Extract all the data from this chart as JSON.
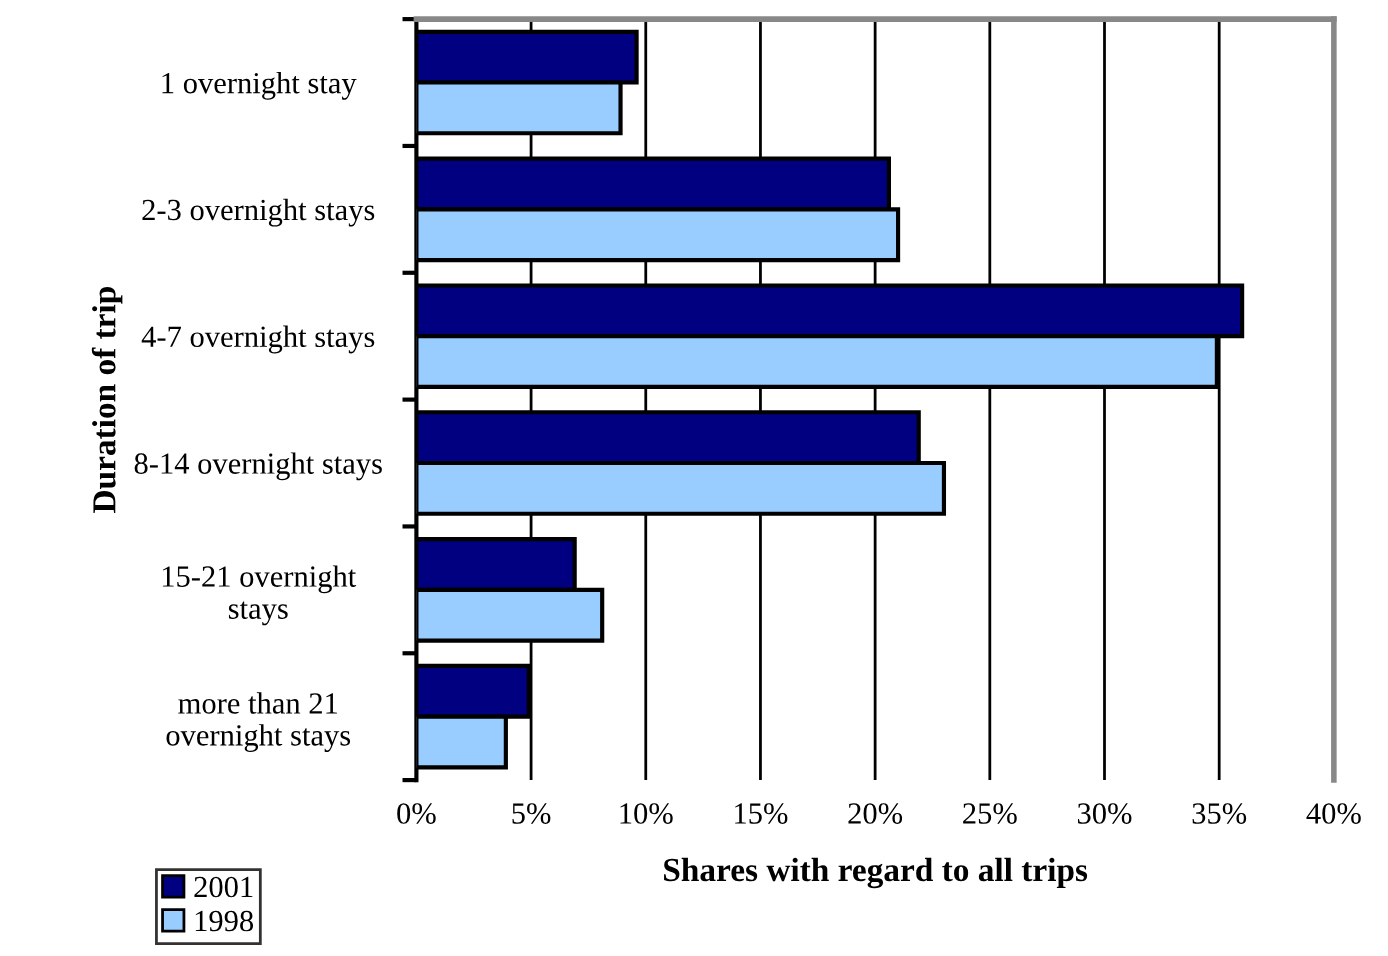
{
  "chart_data": {
    "type": "bar",
    "orientation": "horizontal",
    "xlabel": "Shares with regard to all trips",
    "ylabel": "Duration of trip",
    "categories": [
      "1 overnight stay",
      "2-3 overnight stays",
      "4-7 overnight stays",
      "8-14 overnight stays",
      "15-21 overnight\nstays",
      "more than 21\novernight stays"
    ],
    "series": [
      {
        "name": "2001",
        "color": "#000080",
        "values": [
          9.6,
          20.6,
          36.0,
          21.9,
          6.9,
          4.9
        ]
      },
      {
        "name": "1998",
        "color": "#99ccff",
        "values": [
          8.9,
          21.0,
          34.9,
          23.0,
          8.1,
          3.9
        ]
      }
    ],
    "xlim": [
      0,
      40
    ],
    "xticks": [
      {
        "value": 0,
        "label": "0%"
      },
      {
        "value": 5,
        "label": "5%"
      },
      {
        "value": 10,
        "label": "10%"
      },
      {
        "value": 15,
        "label": "15%"
      },
      {
        "value": 20,
        "label": "20%"
      },
      {
        "value": 25,
        "label": "25%"
      },
      {
        "value": 30,
        "label": "30%"
      },
      {
        "value": 35,
        "label": "35%"
      },
      {
        "value": 40,
        "label": "40%"
      }
    ],
    "grid": "x",
    "legend": "bottom left"
  }
}
